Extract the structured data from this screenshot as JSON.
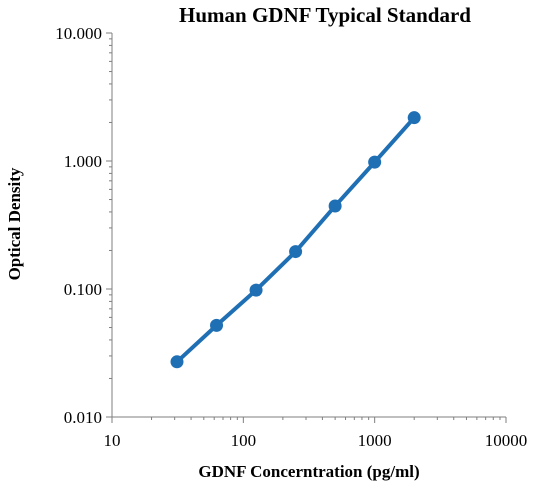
{
  "chart_data": {
    "type": "line",
    "title": "Human GDNF Typical Standard",
    "xlabel": "GDNF Concerntration (pg/ml)",
    "ylabel": "Optical Density",
    "x_scale": "log",
    "y_scale": "log",
    "xlim": [
      10,
      10000
    ],
    "ylim": [
      0.01,
      10
    ],
    "x_ticks": [
      "10",
      "100",
      "1000",
      "10000"
    ],
    "y_ticks": [
      "0.010",
      "0.100",
      "1.000",
      "10.000"
    ],
    "grid": false,
    "legend": "none",
    "series": [
      {
        "color": "#1f6fb4",
        "marker": "circle",
        "points": [
          {
            "x": 31.25,
            "y": 0.027
          },
          {
            "x": 62.5,
            "y": 0.052
          },
          {
            "x": 125,
            "y": 0.098
          },
          {
            "x": 250,
            "y": 0.196
          },
          {
            "x": 500,
            "y": 0.445
          },
          {
            "x": 1000,
            "y": 0.98
          },
          {
            "x": 2000,
            "y": 2.18
          }
        ]
      }
    ]
  }
}
